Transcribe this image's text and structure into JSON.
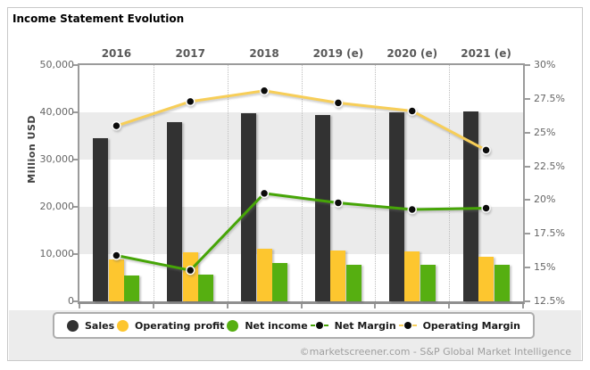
{
  "title": "Income Statement Evolution",
  "footer": {
    "credit": "©marketscreener.com - S&P Global Market Intelligence"
  },
  "chart_data": {
    "type": "bar+line",
    "title": "Income Statement Evolution",
    "categories": [
      "2016",
      "2017",
      "2018",
      "2019 (e)",
      "2020 (e)",
      "2021 (e)"
    ],
    "bar_series": [
      {
        "name": "Sales",
        "color": "#323232",
        "values": [
          34500,
          38000,
          39900,
          39500,
          40000,
          40100
        ]
      },
      {
        "name": "Operating profit",
        "color": "#FDC62F",
        "values": [
          8800,
          10400,
          11100,
          10700,
          10600,
          9400
        ]
      },
      {
        "name": "Net income",
        "color": "#56AF11",
        "values": [
          5500,
          5600,
          8200,
          7700,
          7700,
          7800
        ]
      }
    ],
    "line_series": [
      {
        "name": "Net Margin",
        "color": "#46A507",
        "values": [
          15.9,
          14.8,
          20.5,
          19.8,
          19.3,
          19.4
        ]
      },
      {
        "name": "Operating Margin",
        "color": "#F7CE58",
        "values": [
          25.5,
          27.3,
          28.1,
          27.2,
          26.6,
          23.7
        ]
      }
    ],
    "left_axis": {
      "label": "Million USD",
      "min": 0,
      "max": 50000,
      "step": 10000,
      "tick_labels": [
        "50,000",
        "40,000",
        "30,000",
        "20,000",
        "10,000",
        "0"
      ]
    },
    "right_axis": {
      "min": 12.5,
      "max": 30,
      "step": 2.5,
      "tick_labels": [
        "30%",
        "27.5%",
        "25%",
        "22.5%",
        "20%",
        "17.5%",
        "15%",
        "12.5%"
      ]
    },
    "layout": {
      "bands": true,
      "band_color": "#EBEBEB",
      "vertical_dotted_gridlines": true,
      "legend_position": "bottom",
      "marker_color": "#0B0B0B"
    }
  }
}
